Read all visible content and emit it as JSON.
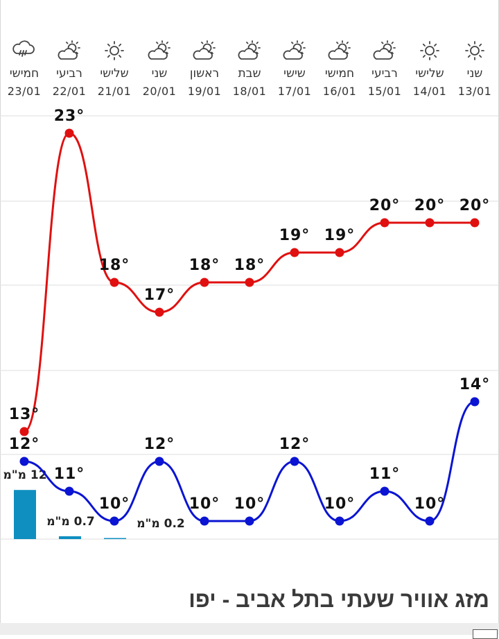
{
  "page": {
    "title": "מזג אוויר שעתי בתל אביב - יפו"
  },
  "days": [
    {
      "name": "חמישי",
      "date": "23/01",
      "icon": "rain-cloud-icon"
    },
    {
      "name": "רביעי",
      "date": "22/01",
      "icon": "partly-sunny-icon"
    },
    {
      "name": "שלישי",
      "date": "21/01",
      "icon": "sun-icon"
    },
    {
      "name": "שני",
      "date": "20/01",
      "icon": "partly-sunny-icon"
    },
    {
      "name": "ראשון",
      "date": "19/01",
      "icon": "partly-sunny-icon"
    },
    {
      "name": "שבת",
      "date": "18/01",
      "icon": "partly-sunny-icon"
    },
    {
      "name": "שישי",
      "date": "17/01",
      "icon": "partly-sunny-icon"
    },
    {
      "name": "חמישי",
      "date": "16/01",
      "icon": "partly-sunny-icon"
    },
    {
      "name": "רביעי",
      "date": "15/01",
      "icon": "partly-sunny-icon"
    },
    {
      "name": "שלישי",
      "date": "14/01",
      "icon": "sun-icon"
    },
    {
      "name": "שני",
      "date": "13/01",
      "icon": "sun-icon"
    }
  ],
  "chart_data": {
    "type": "line",
    "categories": [
      "23/01",
      "22/01",
      "21/01",
      "20/01",
      "19/01",
      "18/01",
      "17/01",
      "16/01",
      "15/01",
      "14/01",
      "13/01"
    ],
    "series": [
      {
        "name": "",
        "role": "max",
        "color": "#e01010",
        "values": [
          13,
          23,
          18,
          17,
          18,
          18,
          19,
          19,
          20,
          20,
          20
        ],
        "labels": [
          "13°",
          "23°",
          "18°",
          "17°",
          "18°",
          "18°",
          "19°",
          "19°",
          "20°",
          "20°",
          "20°"
        ]
      },
      {
        "name": "",
        "role": "min",
        "color": "#0a14d2",
        "values": [
          12,
          11,
          10,
          12,
          10,
          10,
          12,
          10,
          11,
          10,
          14
        ],
        "labels": [
          "12°",
          "11°",
          "10°",
          "12°",
          "10°",
          "10°",
          "12°",
          "10°",
          "11°",
          "10°",
          "14°"
        ]
      }
    ],
    "precipitation": {
      "color": "#0e8fc0",
      "values": [
        12,
        0.7,
        0.2
      ],
      "labels": [
        "12 מ\"מ",
        "0.7 מ\"מ",
        "0.2 מ\"מ"
      ]
    },
    "gridlines": true,
    "ylim": [
      9,
      24
    ]
  },
  "colors": {
    "max_line": "#e01010",
    "min_line": "#0a14d2",
    "precip_bar": "#0e8fc0"
  }
}
